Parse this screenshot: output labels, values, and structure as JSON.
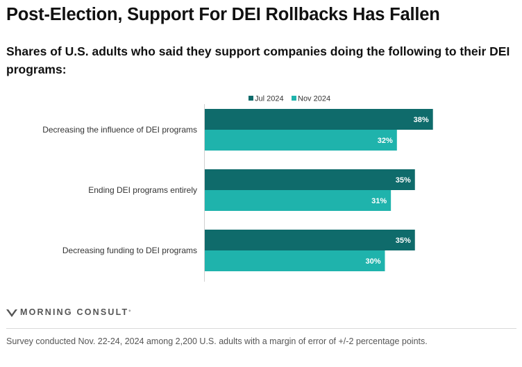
{
  "header": {
    "title": "Post-Election, Support For DEI Rollbacks Has Fallen",
    "subtitle": "Shares of U.S. adults who said they support companies doing the following to their DEI programs:"
  },
  "footer": {
    "brand": "MORNING CONSULT",
    "trademark": "°",
    "logo_icon": "morning-consult-logo-icon",
    "note": "Survey conducted Nov. 22-24, 2024 among 2,200 U.S. adults with a margin of error of +/-2 percentage points."
  },
  "chart_data": {
    "type": "bar",
    "orientation": "horizontal",
    "title": "Post-Election, Support For DEI Rollbacks Has Fallen",
    "subtitle": "Shares of U.S. adults who said they support companies doing the following to their DEI programs:",
    "categories": [
      "Decreasing the influence of DEI programs",
      "Ending DEI programs entirely",
      "Decreasing funding to DEI programs"
    ],
    "series": [
      {
        "name": "Jul 2024",
        "color": "#0f6b6b",
        "values": [
          38,
          35,
          35
        ]
      },
      {
        "name": "Nov 2024",
        "color": "#1fb3ac",
        "values": [
          32,
          31,
          30
        ]
      }
    ],
    "value_suffix": "%",
    "xlim": [
      0,
      40
    ],
    "legend_position": "top",
    "grid": false
  }
}
